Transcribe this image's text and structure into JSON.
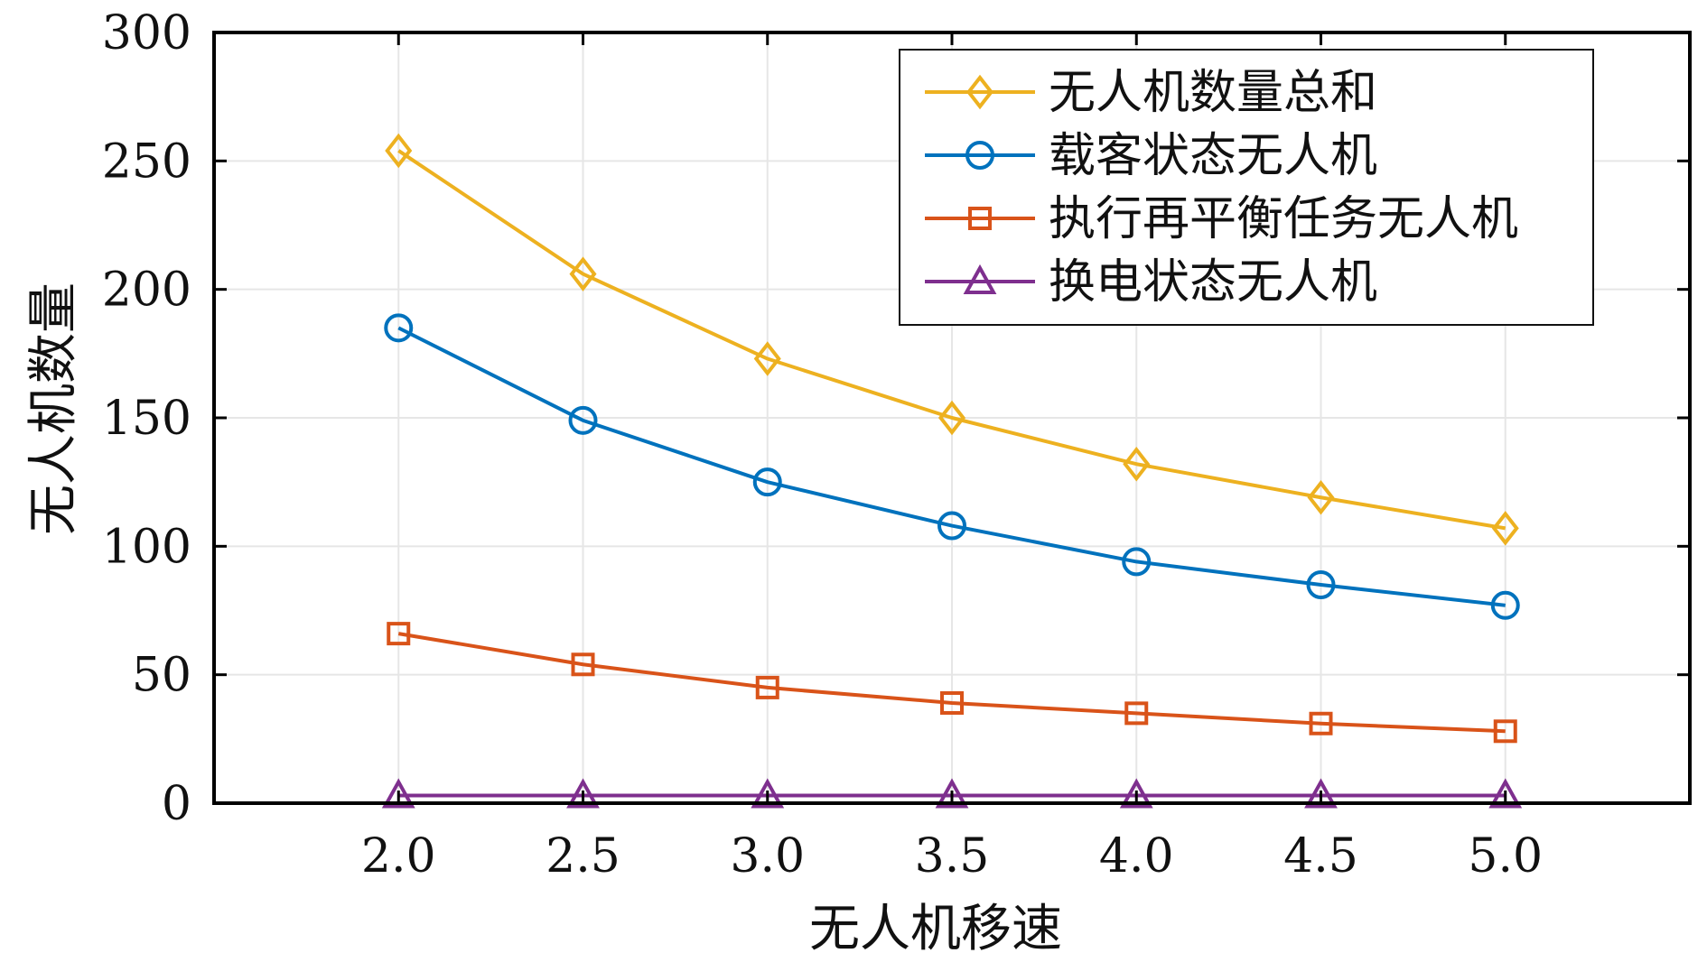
{
  "chart_data": {
    "type": "line",
    "title": "",
    "xlabel": "无人机移速",
    "ylabel": "无人机数量",
    "x": [
      2.0,
      2.5,
      3.0,
      3.5,
      4.0,
      4.5,
      5.0
    ],
    "x_tick_labels": [
      "2.0",
      "2.5",
      "3.0",
      "3.5",
      "4.0",
      "4.5",
      "5.0"
    ],
    "y_ticks": [
      0,
      50,
      100,
      150,
      200,
      250,
      300
    ],
    "y_tick_labels": [
      "0",
      "50",
      "100",
      "150",
      "200",
      "250",
      "300"
    ],
    "xlim": [
      1.5,
      5.5
    ],
    "ylim": [
      0,
      300
    ],
    "grid": true,
    "legend_position": "top-right",
    "series": [
      {
        "name": "无人机数量总和",
        "color": "#EDB120",
        "marker": "diamond",
        "values": [
          254,
          206,
          173,
          150,
          132,
          119,
          107
        ]
      },
      {
        "name": "载客状态无人机",
        "color": "#0072BD",
        "marker": "circle",
        "values": [
          185,
          149,
          125,
          108,
          94,
          85,
          77
        ]
      },
      {
        "name": "执行再平衡任务无人机",
        "color": "#D95319",
        "marker": "square",
        "values": [
          66,
          54,
          45,
          39,
          35,
          31,
          28
        ]
      },
      {
        "name": "换电状态无人机",
        "color": "#7E2F8E",
        "marker": "triangle",
        "values": [
          3,
          3,
          3,
          3,
          3,
          3,
          3
        ]
      }
    ]
  }
}
